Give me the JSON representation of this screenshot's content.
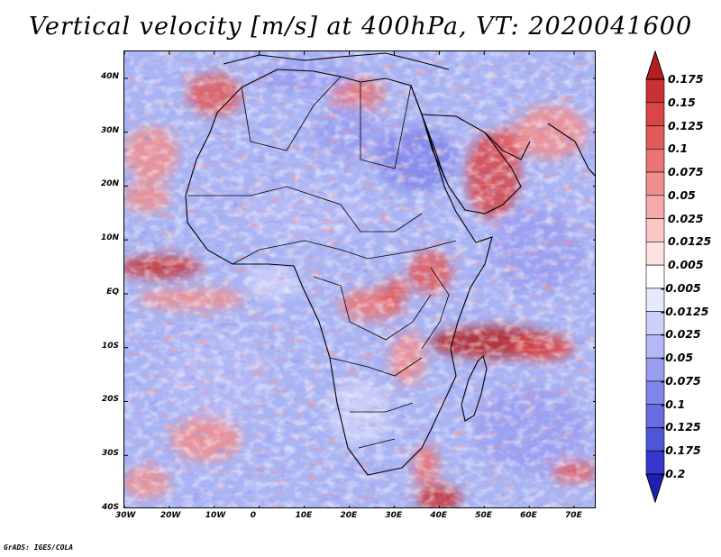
{
  "title": "Vertical velocity [m/s] at 400hPa, VT: 2020041600",
  "credit": "GrADS: IGES/COLA",
  "map": {
    "lat_range": [
      -40,
      45
    ],
    "lon_range": [
      -30,
      75
    ],
    "lat_labels": [
      "40N",
      "30N",
      "20N",
      "10N",
      "EQ",
      "10S",
      "20S",
      "30S",
      "40S"
    ],
    "lat_values": [
      40,
      30,
      20,
      10,
      0,
      -10,
      -20,
      -30,
      -40
    ],
    "lon_labels": [
      "30W",
      "20W",
      "10W",
      "0",
      "10E",
      "20E",
      "30E",
      "40E",
      "50E",
      "60E",
      "70E"
    ],
    "lon_values": [
      -30,
      -20,
      -10,
      0,
      10,
      20,
      30,
      40,
      50,
      60,
      70
    ],
    "background_color": "#a9b4f4",
    "features": [
      {
        "name": "itcz-west-atlantic",
        "lon": -22,
        "lat": 5,
        "rx": 9,
        "ry": 2.2,
        "value": 0.15
      },
      {
        "name": "atlantic-band-south",
        "lon": -15,
        "lat": -1,
        "rx": 12,
        "ry": 2,
        "value": 0.05
      },
      {
        "name": "sahara-northwest",
        "lon": -10,
        "lat": 37,
        "rx": 6,
        "ry": 4,
        "value": 0.1
      },
      {
        "name": "north-atlantic",
        "lon": -24,
        "lat": 26,
        "rx": 6,
        "ry": 5,
        "value": 0.05
      },
      {
        "name": "tropical-atlantic-north",
        "lon": -25,
        "lat": 18,
        "rx": 5,
        "ry": 3,
        "value": 0.05
      },
      {
        "name": "red-sea-arabia",
        "lon": 52,
        "lat": 22,
        "rx": 6,
        "ry": 8,
        "value": 0.125
      },
      {
        "name": "persian-gulf",
        "lon": 56,
        "lat": 28,
        "rx": 4,
        "ry": 3,
        "value": 0.1
      },
      {
        "name": "mediterranean-east",
        "lon": 22,
        "lat": 37,
        "rx": 6,
        "ry": 3,
        "value": 0.075
      },
      {
        "name": "arabian-sea-north",
        "lon": 65,
        "lat": 30,
        "rx": 8,
        "ry": 5,
        "value": 0.05
      },
      {
        "name": "east-africa-highlands",
        "lon": 38,
        "lat": 4,
        "rx": 5,
        "ry": 4,
        "value": 0.1
      },
      {
        "name": "congo-basin",
        "lon": 25,
        "lat": -2,
        "rx": 7,
        "ry": 3,
        "value": 0.075
      },
      {
        "name": "lake-region",
        "lon": 30,
        "lat": 0,
        "rx": 3,
        "ry": 3,
        "value": 0.1
      },
      {
        "name": "indian-ocean-band",
        "lon": 52,
        "lat": -9,
        "rx": 14,
        "ry": 3,
        "value": 0.175
      },
      {
        "name": "indian-ocean-band-east",
        "lon": 63,
        "lat": -10,
        "rx": 7,
        "ry": 2.5,
        "value": 0.125
      },
      {
        "name": "southern-africa-east",
        "lon": 33,
        "lat": -12,
        "rx": 4,
        "ry": 5,
        "value": 0.05
      },
      {
        "name": "south-atlantic",
        "lon": -12,
        "lat": -27,
        "rx": 8,
        "ry": 4,
        "value": 0.05
      },
      {
        "name": "south-east-cape",
        "lon": 40,
        "lat": -38,
        "rx": 5,
        "ry": 2.5,
        "value": 0.15
      },
      {
        "name": "mozambique-channel-south",
        "lon": 37,
        "lat": -32,
        "rx": 3,
        "ry": 4,
        "value": 0.075
      },
      {
        "name": "indian-south-east",
        "lon": 70,
        "lat": -33,
        "rx": 5,
        "ry": 2,
        "value": 0.1
      },
      {
        "name": "atlantic-south-west",
        "lon": -25,
        "lat": -35,
        "rx": 5,
        "ry": 3,
        "value": 0.05
      },
      {
        "name": "sahel-subsidence",
        "lon": 10,
        "lat": 15,
        "rx": 14,
        "ry": 5,
        "value": -0.05
      },
      {
        "name": "egypt-subsidence",
        "lon": 35,
        "lat": 25,
        "rx": 9,
        "ry": 6,
        "value": -0.1
      },
      {
        "name": "libya-subsidence",
        "lon": 20,
        "lat": 30,
        "rx": 8,
        "ry": 5,
        "value": -0.075
      },
      {
        "name": "mediterranean-west",
        "lon": 10,
        "lat": 40,
        "rx": 10,
        "ry": 3,
        "value": -0.075
      },
      {
        "name": "indian-ocean-subsidence",
        "lon": 62,
        "lat": 8,
        "rx": 10,
        "ry": 8,
        "value": -0.075
      },
      {
        "name": "south-indian-subsidence",
        "lon": 60,
        "lat": -25,
        "rx": 12,
        "ry": 8,
        "value": -0.075
      },
      {
        "name": "south-atlantic-subsidence",
        "lon": -10,
        "lat": -15,
        "rx": 12,
        "ry": 8,
        "value": -0.05
      },
      {
        "name": "southern-africa-interior",
        "lon": 22,
        "lat": -22,
        "rx": 7,
        "ry": 6,
        "value": -0.025
      },
      {
        "name": "gulf-of-guinea",
        "lon": 3,
        "lat": 2,
        "rx": 6,
        "ry": 3,
        "value": -0.025
      }
    ]
  },
  "colorbar": {
    "labels": [
      "0.175",
      "0.15",
      "0.125",
      "0.1",
      "0.075",
      "0.05",
      "0.025",
      "0.0125",
      "0.005",
      "-0.005",
      "-0.0125",
      "-0.025",
      "-0.05",
      "-0.075",
      "-0.1",
      "-0.125",
      "-0.175",
      "-0.2"
    ],
    "colors": [
      "#b41e1e",
      "#c83232",
      "#d84646",
      "#e25a5a",
      "#ea7474",
      "#f08e8e",
      "#f5aaaa",
      "#fac6c6",
      "#fde2e2",
      "#ffffff",
      "#e6e8fc",
      "#cdd0fa",
      "#b4b8f6",
      "#9a9ef0",
      "#8086ea",
      "#686ee2",
      "#4e55d8",
      "#3438cc",
      "#1f1fb4"
    ],
    "top_color": "#b41e1e",
    "bottom_color": "#1f1fb4"
  }
}
